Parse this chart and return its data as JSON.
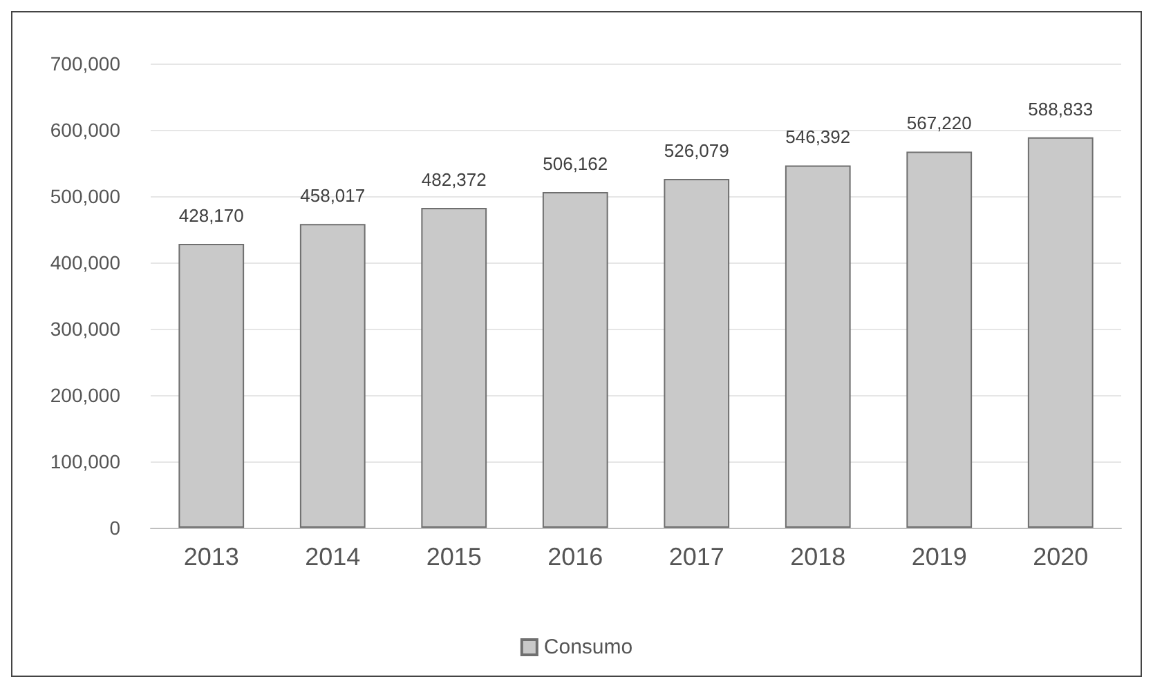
{
  "chart_data": {
    "type": "bar",
    "categories": [
      "2013",
      "2014",
      "2015",
      "2016",
      "2017",
      "2018",
      "2019",
      "2020"
    ],
    "series": [
      {
        "name": "Consumo",
        "color": "#c9c9c9",
        "values": [
          428170,
          458017,
          482372,
          506162,
          526079,
          546392,
          567220,
          588833
        ],
        "value_labels": [
          "428,170",
          "458,017",
          "482,372",
          "506,162",
          "526,079",
          "546,392",
          "567,220",
          "588,833"
        ]
      }
    ],
    "ylim": [
      0,
      700000
    ],
    "yticks": [
      {
        "value": 0,
        "label": "0"
      },
      {
        "value": 100000,
        "label": "100,000"
      },
      {
        "value": 200000,
        "label": "200,000"
      },
      {
        "value": 300000,
        "label": "300,000"
      },
      {
        "value": 400000,
        "label": "400,000"
      },
      {
        "value": 500000,
        "label": "500,000"
      },
      {
        "value": 600000,
        "label": "600,000"
      },
      {
        "value": 700000,
        "label": "700,000"
      }
    ],
    "grid": "y",
    "legend": "bottom"
  }
}
